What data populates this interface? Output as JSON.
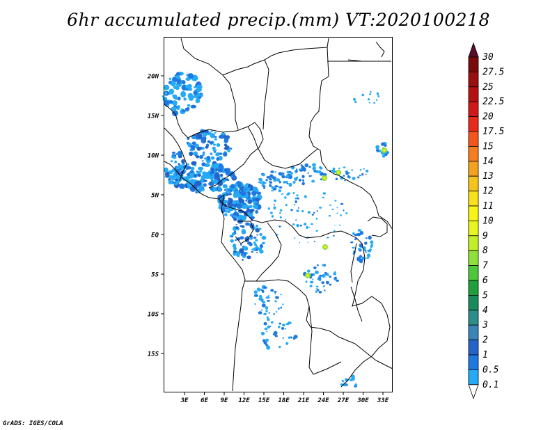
{
  "title": "6hr accumulated precip.(mm) VT:2020100218",
  "credit": "GrADS: IGES/COLA",
  "map": {
    "lat_labels": [
      "20N",
      "15N",
      "10N",
      "5N",
      "EQ",
      "5S",
      "10S",
      "15S"
    ],
    "lon_labels": [
      "3E",
      "6E",
      "9E",
      "12E",
      "15E",
      "18E",
      "21E",
      "24E",
      "27E",
      "30E",
      "33E"
    ]
  },
  "colorbar": {
    "labels": [
      "30",
      "27.5",
      "25",
      "22.5",
      "20",
      "17.5",
      "15",
      "14",
      "13",
      "12",
      "11",
      "10",
      "9",
      "8",
      "7",
      "6",
      "5",
      "4",
      "3",
      "2",
      "1",
      "0.5",
      "0.1"
    ],
    "colors": [
      "#5a0d2a",
      "#7a0a0a",
      "#9a0f0f",
      "#b41212",
      "#d01818",
      "#e82a1a",
      "#f2561c",
      "#f57d20",
      "#f5a020",
      "#f5c41c",
      "#f8e01a",
      "#f8f516",
      "#e8f520",
      "#c2ef28",
      "#8fe03a",
      "#4cc63a",
      "#1f9e3b",
      "#1a8a5c",
      "#2c8e8a",
      "#3a85b8",
      "#2464c8",
      "#1f78e0",
      "#25aaf5",
      "#a8e0fa"
    ]
  }
}
